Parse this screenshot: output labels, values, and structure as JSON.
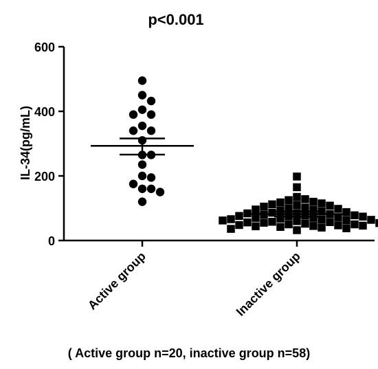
{
  "chart_data": {
    "type": "scatter",
    "title": "p<0.001",
    "ylabel": "IL-34(pg/mL)",
    "xlabel": "",
    "ylim": [
      0,
      600
    ],
    "yticks": [
      "0",
      "200",
      "400",
      "600"
    ],
    "yticks_values": [
      0,
      200,
      400,
      600
    ],
    "categories": [
      "Active group",
      "Inactive  group"
    ],
    "grid": false,
    "footnote": "( Active group n=20, inactive group n=58)",
    "series": [
      {
        "marker": "circle",
        "color": "#000000",
        "mean": 293,
        "sem_upper": 316,
        "sem_lower": 266,
        "values": [
          495,
          450,
          432,
          405,
          390,
          390,
          355,
          340,
          340,
          310,
          265,
          265,
          235,
          200,
          195,
          175,
          160,
          160,
          150,
          120
        ]
      },
      {
        "marker": "square",
        "color": "#000000",
        "mean": 82,
        "sem_upper": 90,
        "sem_lower": 74,
        "values": [
          198,
          165,
          135,
          128,
          125,
          120,
          118,
          115,
          112,
          110,
          108,
          105,
          102,
          100,
          98,
          96,
          95,
          93,
          90,
          88,
          86,
          85,
          84,
          82,
          80,
          78,
          77,
          76,
          75,
          74,
          72,
          70,
          70,
          68,
          66,
          65,
          64,
          63,
          62,
          60,
          58,
          57,
          56,
          55,
          54,
          52,
          50,
          50,
          48,
          47,
          46,
          45,
          44,
          42,
          40,
          38,
          36,
          32
        ]
      }
    ]
  }
}
